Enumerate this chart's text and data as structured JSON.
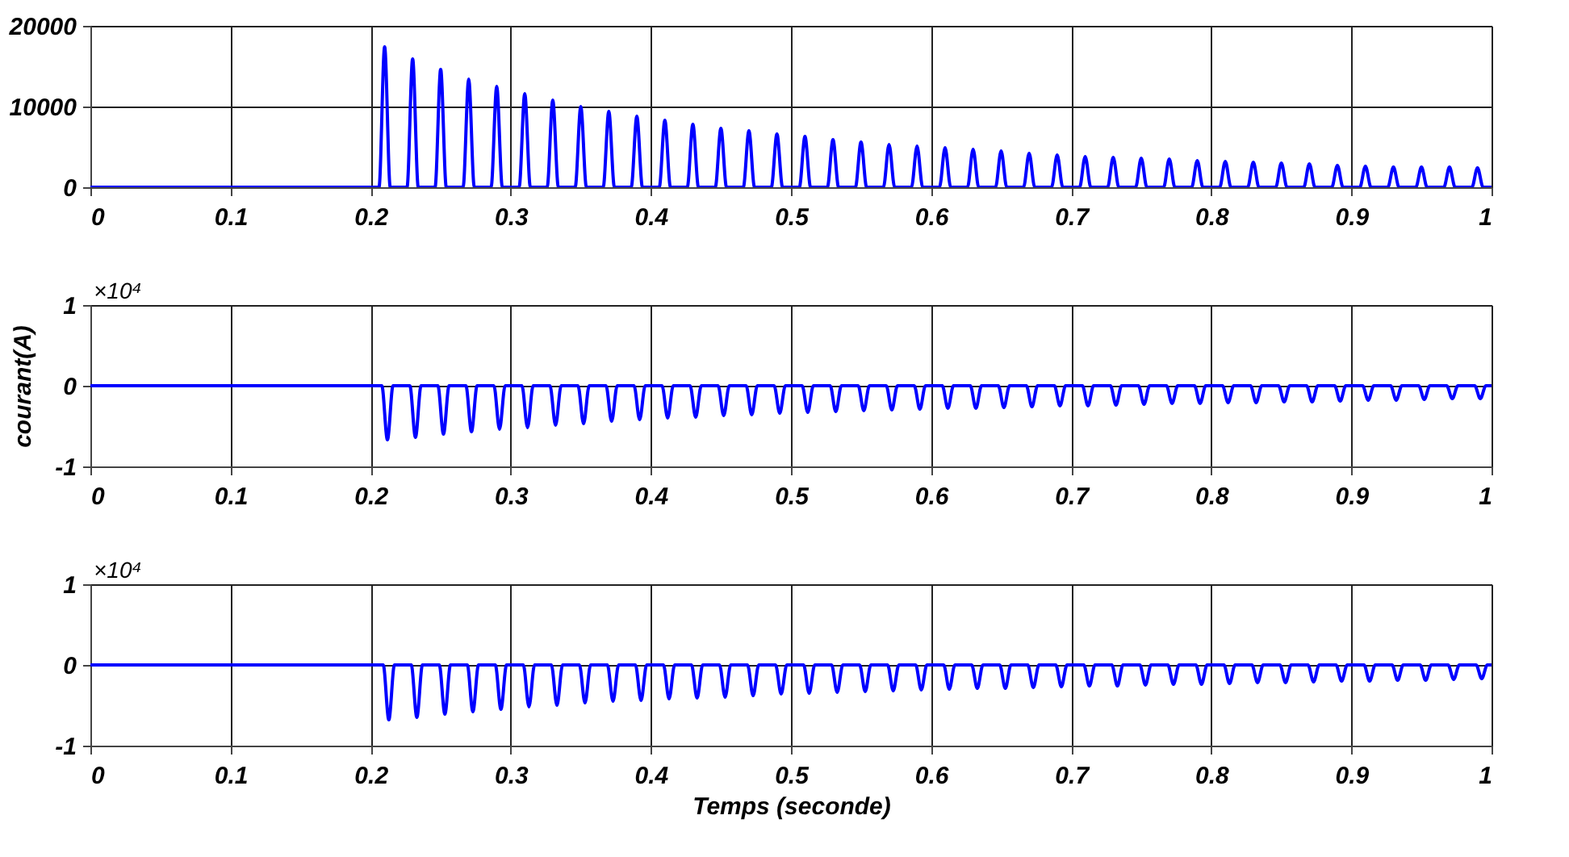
{
  "chart_data": [
    {
      "type": "line",
      "xlim": [
        0,
        1
      ],
      "xticks": [
        0,
        0.1,
        0.2,
        0.3,
        0.4,
        0.5,
        0.6,
        0.7,
        0.8,
        0.9,
        1
      ],
      "ylim": [
        0,
        20000
      ],
      "yticks": [
        0,
        10000,
        20000
      ],
      "grid": true,
      "series": [
        {
          "color": "#0000ff",
          "x": [
            0,
            0.206,
            0.21,
            0.214,
            0.226,
            0.23,
            0.234,
            0.246,
            0.25,
            0.254,
            0.266,
            0.27,
            0.274,
            0.286,
            0.29,
            0.294,
            0.306,
            0.31,
            0.314,
            0.326,
            0.33,
            0.334,
            0.346,
            0.35,
            0.354,
            0.366,
            0.37,
            0.374,
            0.386,
            0.39,
            0.394,
            0.406,
            0.41,
            0.414,
            0.426,
            0.43,
            0.434,
            0.446,
            0.45,
            0.454,
            0.466,
            0.47,
            0.474,
            0.486,
            0.49,
            0.494,
            0.506,
            0.51,
            0.514,
            0.526,
            0.53,
            0.534,
            0.546,
            0.55,
            0.554,
            0.566,
            0.57,
            0.574,
            0.586,
            0.59,
            0.594,
            0.606,
            0.61,
            0.614,
            0.626,
            0.63,
            0.634,
            0.646,
            0.65,
            0.654,
            0.666,
            0.67,
            0.674,
            0.686,
            0.69,
            0.694,
            0.706,
            0.71,
            0.714,
            0.726,
            0.73,
            0.734,
            0.746,
            0.75,
            0.754,
            0.766,
            0.77,
            0.774,
            0.786,
            0.79,
            0.794,
            0.806,
            0.81,
            0.814,
            0.826,
            0.83,
            0.834,
            0.846,
            0.85,
            0.854,
            0.866,
            0.87,
            0.874,
            0.886,
            0.89,
            0.894,
            0.906,
            0.91,
            0.914,
            0.926,
            0.93,
            0.934,
            0.946,
            0.95,
            0.954,
            0.966,
            0.97,
            0.974,
            0.986,
            0.99,
            0.994,
            1
          ],
          "values": [
            0,
            0,
            17400,
            0,
            0,
            15900,
            0,
            0,
            14600,
            0,
            0,
            13400,
            0,
            0,
            12500,
            0,
            0,
            11600,
            0,
            0,
            10800,
            0,
            0,
            10000,
            0,
            0,
            9400,
            0,
            0,
            8800,
            0,
            0,
            8300,
            0,
            0,
            7800,
            0,
            0,
            7300,
            0,
            0,
            7000,
            0,
            0,
            6600,
            0,
            0,
            6300,
            0,
            0,
            5900,
            0,
            0,
            5600,
            0,
            0,
            5300,
            0,
            0,
            5100,
            0,
            0,
            4900,
            0,
            0,
            4700,
            0,
            0,
            4500,
            0,
            0,
            4200,
            0,
            0,
            4000,
            0,
            0,
            3800,
            0,
            0,
            3700,
            0,
            0,
            3600,
            0,
            0,
            3500,
            0,
            0,
            3300,
            0,
            0,
            3200,
            0,
            0,
            3100,
            0,
            0,
            3000,
            0,
            0,
            2900,
            0,
            0,
            2700,
            0,
            0,
            2600,
            0,
            0,
            2500,
            0,
            0,
            2500,
            0,
            0,
            2500,
            0,
            0,
            2400,
            0,
            0
          ]
        }
      ]
    },
    {
      "type": "line",
      "xlim": [
        0,
        1
      ],
      "xticks": [
        0,
        0.1,
        0.2,
        0.3,
        0.4,
        0.5,
        0.6,
        0.7,
        0.8,
        0.9,
        1
      ],
      "ylim": [
        -1,
        1
      ],
      "yticks": [
        -1,
        0,
        1
      ],
      "grid": true,
      "ylabel": "courant(A)",
      "annotations": [
        "×10⁴"
      ],
      "series": [
        {
          "color": "#0000ff",
          "x": [
            0,
            0.208,
            0.212,
            0.216,
            0.228,
            0.232,
            0.236,
            0.248,
            0.252,
            0.256,
            0.268,
            0.272,
            0.276,
            0.288,
            0.292,
            0.296,
            0.308,
            0.312,
            0.316,
            0.328,
            0.332,
            0.336,
            0.348,
            0.352,
            0.356,
            0.368,
            0.372,
            0.376,
            0.388,
            0.392,
            0.396,
            0.408,
            0.412,
            0.416,
            0.428,
            0.432,
            0.436,
            0.448,
            0.452,
            0.456,
            0.468,
            0.472,
            0.476,
            0.488,
            0.492,
            0.496,
            0.508,
            0.512,
            0.516,
            0.528,
            0.532,
            0.536,
            0.548,
            0.552,
            0.556,
            0.568,
            0.572,
            0.576,
            0.588,
            0.592,
            0.596,
            0.608,
            0.612,
            0.616,
            0.628,
            0.632,
            0.636,
            0.648,
            0.652,
            0.656,
            0.668,
            0.672,
            0.676,
            0.688,
            0.692,
            0.696,
            0.708,
            0.712,
            0.716,
            0.728,
            0.732,
            0.736,
            0.748,
            0.752,
            0.756,
            0.768,
            0.772,
            0.776,
            0.788,
            0.792,
            0.796,
            0.808,
            0.812,
            0.816,
            0.828,
            0.832,
            0.836,
            0.848,
            0.852,
            0.856,
            0.868,
            0.872,
            0.876,
            0.888,
            0.892,
            0.896,
            0.908,
            0.912,
            0.916,
            0.928,
            0.932,
            0.936,
            0.948,
            0.952,
            0.956,
            0.968,
            0.972,
            0.976,
            0.988,
            0.992,
            0.996,
            1
          ],
          "values": [
            0,
            0,
            -0.67,
            0,
            0,
            -0.64,
            0,
            0,
            -0.6,
            0,
            0,
            -0.57,
            0,
            0,
            -0.54,
            0,
            0,
            -0.52,
            0,
            0,
            -0.49,
            0,
            0,
            -0.47,
            0,
            0,
            -0.44,
            0,
            0,
            -0.42,
            0,
            0,
            -0.4,
            0,
            0,
            -0.39,
            0,
            0,
            -0.37,
            0,
            0,
            -0.36,
            0,
            0,
            -0.34,
            0,
            0,
            -0.33,
            0,
            0,
            -0.32,
            0,
            0,
            -0.31,
            0,
            0,
            -0.3,
            0,
            0,
            -0.29,
            0,
            0,
            -0.28,
            0,
            0,
            -0.28,
            0,
            0,
            -0.27,
            0,
            0,
            -0.26,
            0,
            0,
            -0.25,
            0,
            0,
            -0.25,
            0,
            0,
            -0.24,
            0,
            0,
            -0.23,
            0,
            0,
            -0.22,
            0,
            0,
            -0.22,
            0,
            0,
            -0.21,
            0,
            0,
            -0.21,
            0,
            0,
            -0.2,
            0,
            0,
            -0.2,
            0,
            0,
            -0.19,
            0,
            0,
            -0.18,
            0,
            0,
            -0.18,
            0,
            0,
            -0.17,
            0,
            0,
            -0.16,
            0,
            0,
            -0.16,
            0,
            0
          ]
        }
      ]
    },
    {
      "type": "line",
      "xlim": [
        0,
        1
      ],
      "xticks": [
        0,
        0.1,
        0.2,
        0.3,
        0.4,
        0.5,
        0.6,
        0.7,
        0.8,
        0.9,
        1
      ],
      "ylim": [
        -1,
        1
      ],
      "yticks": [
        -1,
        0,
        1
      ],
      "grid": true,
      "xlabel": "Temps (seconde)",
      "annotations": [
        "×10⁴"
      ],
      "series": [
        {
          "color": "#0000ff",
          "x": [
            0,
            0.209,
            0.213,
            0.217,
            0.229,
            0.233,
            0.237,
            0.249,
            0.253,
            0.257,
            0.269,
            0.273,
            0.277,
            0.289,
            0.293,
            0.297,
            0.309,
            0.313,
            0.317,
            0.329,
            0.333,
            0.337,
            0.349,
            0.353,
            0.357,
            0.369,
            0.373,
            0.377,
            0.389,
            0.393,
            0.397,
            0.409,
            0.413,
            0.417,
            0.429,
            0.433,
            0.437,
            0.449,
            0.453,
            0.457,
            0.469,
            0.473,
            0.477,
            0.489,
            0.493,
            0.497,
            0.509,
            0.513,
            0.517,
            0.529,
            0.533,
            0.537,
            0.549,
            0.553,
            0.557,
            0.569,
            0.573,
            0.577,
            0.589,
            0.593,
            0.597,
            0.609,
            0.613,
            0.617,
            0.629,
            0.633,
            0.637,
            0.649,
            0.653,
            0.657,
            0.669,
            0.673,
            0.677,
            0.689,
            0.693,
            0.697,
            0.709,
            0.713,
            0.717,
            0.729,
            0.733,
            0.737,
            0.749,
            0.753,
            0.757,
            0.769,
            0.773,
            0.777,
            0.789,
            0.793,
            0.797,
            0.809,
            0.813,
            0.817,
            0.829,
            0.833,
            0.837,
            0.849,
            0.853,
            0.857,
            0.869,
            0.873,
            0.877,
            0.889,
            0.893,
            0.897,
            0.909,
            0.913,
            0.917,
            0.929,
            0.933,
            0.937,
            0.949,
            0.953,
            0.957,
            0.969,
            0.973,
            0.977,
            0.989,
            0.993,
            0.997,
            1
          ],
          "values": [
            0,
            0,
            -0.68,
            0,
            0,
            -0.65,
            0,
            0,
            -0.61,
            0,
            0,
            -0.58,
            0,
            0,
            -0.55,
            0,
            0,
            -0.52,
            0,
            0,
            -0.5,
            0,
            0,
            -0.47,
            0,
            0,
            -0.45,
            0,
            0,
            -0.44,
            0,
            0,
            -0.42,
            0,
            0,
            -0.41,
            0,
            0,
            -0.4,
            0,
            0,
            -0.38,
            0,
            0,
            -0.36,
            0,
            0,
            -0.35,
            0,
            0,
            -0.34,
            0,
            0,
            -0.33,
            0,
            0,
            -0.32,
            0,
            0,
            -0.31,
            0,
            0,
            -0.3,
            0,
            0,
            -0.29,
            0,
            0,
            -0.29,
            0,
            0,
            -0.28,
            0,
            0,
            -0.27,
            0,
            0,
            -0.26,
            0,
            0,
            -0.26,
            0,
            0,
            -0.25,
            0,
            0,
            -0.24,
            0,
            0,
            -0.24,
            0,
            0,
            -0.23,
            0,
            0,
            -0.22,
            0,
            0,
            -0.22,
            0,
            0,
            -0.21,
            0,
            0,
            -0.2,
            0,
            0,
            -0.2,
            0,
            0,
            -0.19,
            0,
            0,
            -0.19,
            0,
            0,
            -0.18,
            0,
            0,
            -0.17,
            0,
            0
          ]
        }
      ]
    }
  ]
}
